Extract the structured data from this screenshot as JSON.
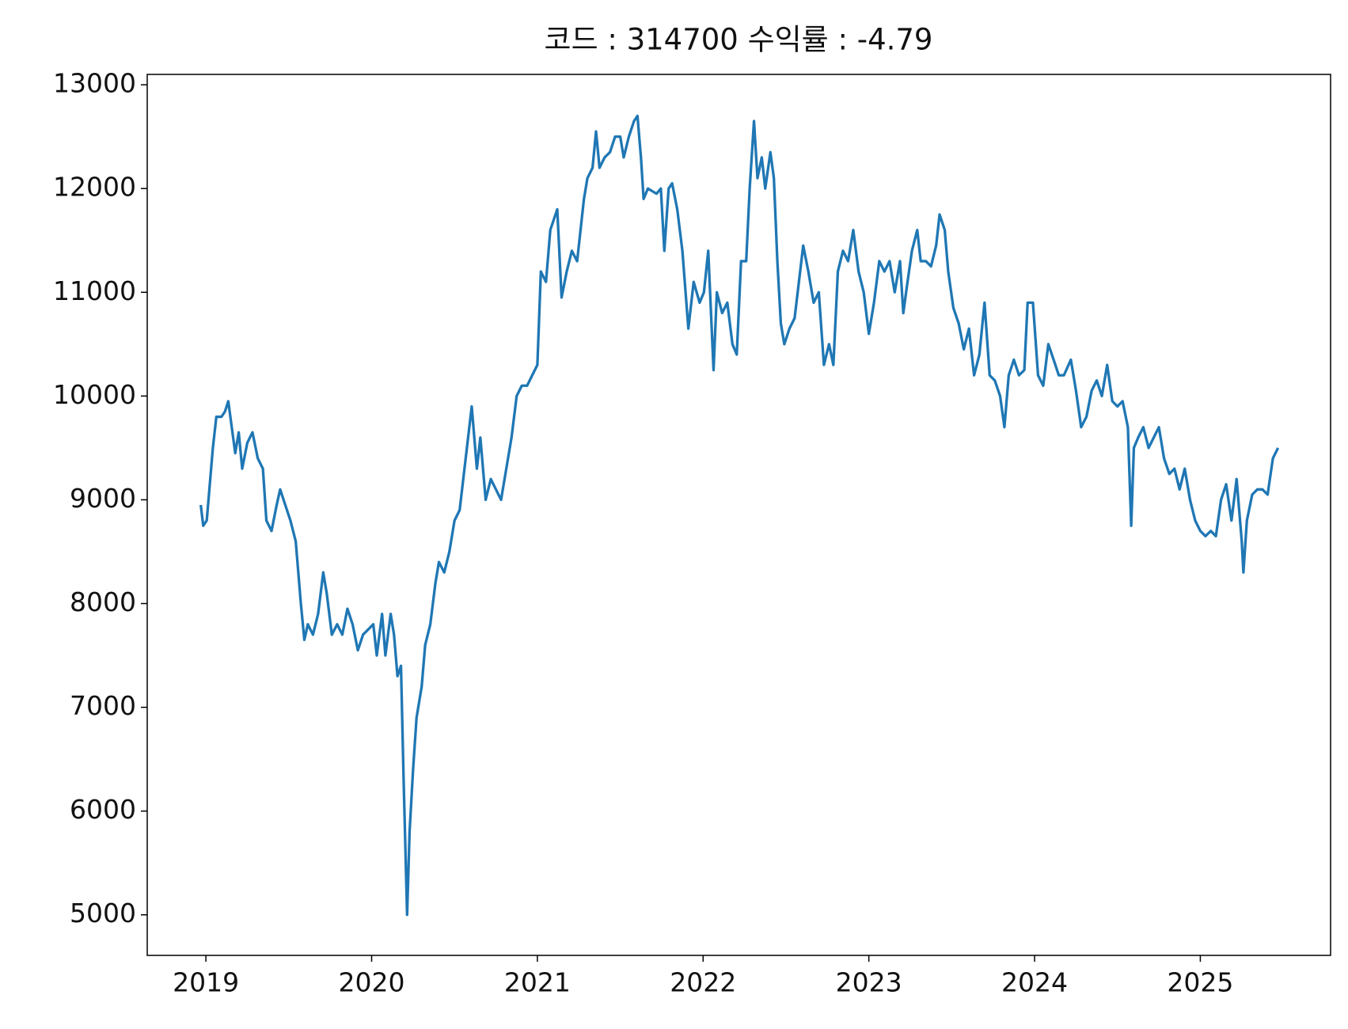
{
  "chart_data": {
    "type": "line",
    "title": "코드 : 314700 수익률 : -4.79",
    "color": "#1f77b4",
    "grid": false,
    "xlim": [
      2018.646,
      2025.786
    ],
    "xticks": [
      2019,
      2020,
      2021,
      2022,
      2023,
      2024,
      2025
    ],
    "ylim": [
      4609,
      13100
    ],
    "yticks": [
      5000,
      6000,
      7000,
      8000,
      9000,
      10000,
      11000,
      12000,
      13000
    ],
    "x": [
      2018.969,
      2018.984,
      2019.005,
      2019.021,
      2019.042,
      2019.063,
      2019.094,
      2019.115,
      2019.135,
      2019.156,
      2019.177,
      2019.198,
      2019.219,
      2019.25,
      2019.281,
      2019.313,
      2019.344,
      2019.365,
      2019.396,
      2019.427,
      2019.448,
      2019.479,
      2019.51,
      2019.542,
      2019.573,
      2019.594,
      2019.615,
      2019.646,
      2019.677,
      2019.708,
      2019.729,
      2019.76,
      2019.792,
      2019.823,
      2019.854,
      2019.885,
      2019.917,
      2019.948,
      2019.979,
      2020.01,
      2020.031,
      2020.063,
      2020.083,
      2020.115,
      2020.135,
      2020.156,
      2020.177,
      2020.193,
      2020.214,
      2020.229,
      2020.25,
      2020.271,
      2020.302,
      2020.323,
      2020.354,
      2020.385,
      2020.406,
      2020.438,
      2020.469,
      2020.5,
      2020.531,
      2020.604,
      2020.635,
      2020.656,
      2020.688,
      2020.719,
      2020.75,
      2020.781,
      2020.844,
      2020.875,
      2020.906,
      2020.938,
      2020.969,
      2021.0,
      2021.021,
      2021.052,
      2021.078,
      2021.12,
      2021.146,
      2021.177,
      2021.208,
      2021.24,
      2021.281,
      2021.302,
      2021.333,
      2021.354,
      2021.375,
      2021.406,
      2021.438,
      2021.469,
      2021.5,
      2021.521,
      2021.552,
      2021.583,
      2021.604,
      2021.625,
      2021.641,
      2021.667,
      2021.719,
      2021.745,
      2021.766,
      2021.792,
      2021.813,
      2021.844,
      2021.875,
      2021.911,
      2021.943,
      2021.979,
      2022.005,
      2022.031,
      2022.063,
      2022.083,
      2022.115,
      2022.146,
      2022.177,
      2022.203,
      2022.229,
      2022.26,
      2022.281,
      2022.307,
      2022.328,
      2022.354,
      2022.375,
      2022.406,
      2022.427,
      2022.448,
      2022.469,
      2022.49,
      2022.521,
      2022.552,
      2022.578,
      2022.604,
      2022.635,
      2022.667,
      2022.698,
      2022.729,
      2022.76,
      2022.786,
      2022.813,
      2022.844,
      2022.875,
      2022.906,
      2022.938,
      2022.969,
      2023.0,
      2023.031,
      2023.063,
      2023.094,
      2023.125,
      2023.156,
      2023.188,
      2023.208,
      2023.229,
      2023.26,
      2023.292,
      2023.313,
      2023.344,
      2023.375,
      2023.406,
      2023.427,
      2023.458,
      2023.479,
      2023.51,
      2023.542,
      2023.573,
      2023.604,
      2023.635,
      2023.667,
      2023.698,
      2023.729,
      2023.76,
      2023.792,
      2023.818,
      2023.844,
      2023.875,
      2023.906,
      2023.938,
      2023.958,
      2023.99,
      2024.021,
      2024.052,
      2024.083,
      2024.115,
      2024.146,
      2024.177,
      2024.219,
      2024.25,
      2024.281,
      2024.313,
      2024.344,
      2024.375,
      2024.406,
      2024.438,
      2024.469,
      2024.5,
      2024.531,
      2024.563,
      2024.583,
      2024.599,
      2024.625,
      2024.656,
      2024.688,
      2024.719,
      2024.75,
      2024.781,
      2024.813,
      2024.844,
      2024.875,
      2024.906,
      2024.938,
      2024.969,
      2025.0,
      2025.031,
      2025.063,
      2025.094,
      2025.125,
      2025.156,
      2025.188,
      2025.219,
      2025.25,
      2025.26,
      2025.281,
      2025.313,
      2025.344,
      2025.375,
      2025.406,
      2025.438,
      2025.469
    ],
    "values": [
      8950,
      8750,
      8800,
      9100,
      9500,
      9800,
      9800,
      9850,
      9950,
      9700,
      9450,
      9650,
      9300,
      9550,
      9650,
      9400,
      9300,
      8800,
      8700,
      8950,
      9100,
      8950,
      8800,
      8600,
      8000,
      7650,
      7800,
      7700,
      7900,
      8300,
      8100,
      7700,
      7800,
      7700,
      7950,
      7800,
      7550,
      7700,
      7750,
      7800,
      7500,
      7900,
      7500,
      7900,
      7700,
      7300,
      7400,
      6300,
      5000,
      5800,
      6400,
      6900,
      7200,
      7600,
      7800,
      8200,
      8400,
      8300,
      8500,
      8800,
      8900,
      9900,
      9300,
      9600,
      9000,
      9200,
      9100,
      9000,
      9600,
      10000,
      10100,
      10100,
      10200,
      10300,
      11200,
      11100,
      11600,
      11800,
      10950,
      11200,
      11400,
      11300,
      11900,
      12100,
      12200,
      12550,
      12200,
      12300,
      12350,
      12500,
      12500,
      12300,
      12500,
      12650,
      12700,
      12300,
      11900,
      12000,
      11950,
      12000,
      11400,
      12000,
      12050,
      11800,
      11400,
      10650,
      11100,
      10900,
      11000,
      11400,
      10250,
      11000,
      10800,
      10900,
      10500,
      10400,
      11300,
      11300,
      12000,
      12650,
      12100,
      12300,
      12000,
      12350,
      12100,
      11300,
      10700,
      10500,
      10650,
      10750,
      11100,
      11450,
      11200,
      10900,
      11000,
      10300,
      10500,
      10300,
      11200,
      11400,
      11300,
      11600,
      11200,
      11000,
      10600,
      10900,
      11300,
      11200,
      11300,
      11000,
      11300,
      10800,
      11050,
      11400,
      11600,
      11300,
      11300,
      11250,
      11450,
      11750,
      11600,
      11200,
      10850,
      10700,
      10450,
      10650,
      10200,
      10400,
      10900,
      10200,
      10150,
      10000,
      9700,
      10200,
      10350,
      10200,
      10250,
      10900,
      10900,
      10200,
      10100,
      10500,
      10350,
      10200,
      10200,
      10350,
      10050,
      9700,
      9800,
      10050,
      10150,
      10000,
      10300,
      9950,
      9900,
      9950,
      9700,
      8750,
      9500,
      9600,
      9700,
      9500,
      9600,
      9700,
      9400,
      9250,
      9300,
      9100,
      9300,
      9000,
      8800,
      8700,
      8650,
      8700,
      8650,
      9000,
      9150,
      8800,
      9200,
      8600,
      8300,
      8800,
      9050,
      9100,
      9100,
      9050,
      9400,
      9500
    ]
  }
}
